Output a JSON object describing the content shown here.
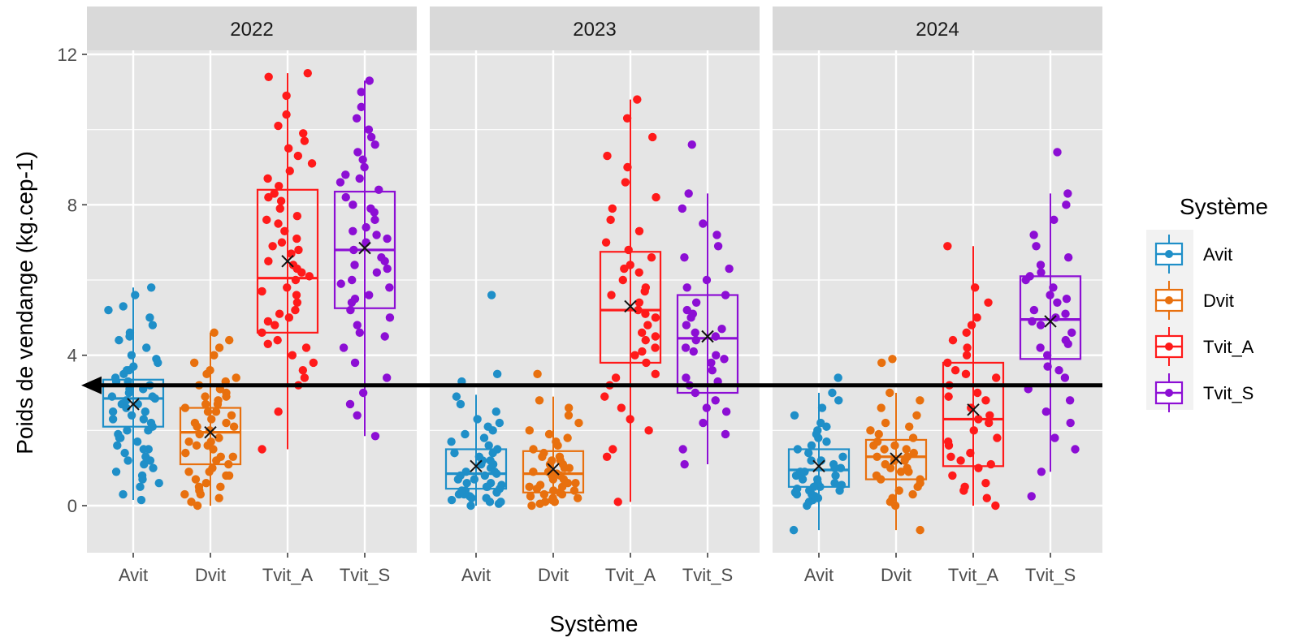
{
  "chart_data": {
    "type": "box",
    "ylabel": "Poids de vendange (kg.cep-1)",
    "xlabel": "Système",
    "ylim": [
      -1.25,
      12.5
    ],
    "yticks": [
      0,
      4,
      8,
      12
    ],
    "facets": [
      "2022",
      "2023",
      "2024"
    ],
    "categories": [
      "Avit",
      "Dvit",
      "Tvit_A",
      "Tvit_S"
    ],
    "legend": {
      "title": "Système",
      "position": "right",
      "entries": [
        "Avit",
        "Dvit",
        "Tvit_A",
        "Tvit_S"
      ]
    },
    "colors": {
      "Avit": "#1f8fc8",
      "Dvit": "#e8700e",
      "Tvit_A": "#ff1a1a",
      "Tvit_S": "#8c0ed4",
      "panel_bg": "#e5e5e5",
      "strip_bg": "#d9d9d9",
      "grid": "#ffffff"
    },
    "reference_arrow": {
      "y": 3.2,
      "direction": "left"
    },
    "boxes": {
      "2022": [
        {
          "category": "Avit",
          "q1": 2.1,
          "median": 2.85,
          "q3": 3.35,
          "wmin": 0.15,
          "wmax": 5.8,
          "mean": 2.7,
          "points": [
            0.15,
            0.3,
            0.5,
            0.6,
            0.7,
            0.8,
            0.9,
            1.0,
            1.1,
            1.2,
            1.3,
            1.4,
            1.5,
            1.6,
            1.7,
            1.8,
            1.9,
            2.0,
            2.1,
            2.2,
            2.3,
            2.4,
            2.5,
            2.6,
            2.7,
            2.8,
            2.85,
            2.9,
            3.0,
            3.1,
            3.2,
            3.3,
            3.4,
            3.5,
            3.6,
            3.7,
            3.8,
            4.0,
            4.2,
            4.4,
            4.6,
            4.8,
            5.0,
            5.3,
            5.6,
            5.8,
            2.3,
            2.5,
            2.7,
            2.9,
            3.1,
            1.2,
            1.5,
            1.8,
            2.0,
            3.3,
            3.6,
            3.9,
            4.5,
            5.2
          ]
        },
        {
          "category": "Dvit",
          "q1": 1.1,
          "median": 1.95,
          "q3": 2.6,
          "wmin": 0.0,
          "wmax": 4.6,
          "mean": 1.95,
          "points": [
            0.0,
            0.1,
            0.2,
            0.3,
            0.4,
            0.5,
            0.6,
            0.7,
            0.8,
            0.9,
            1.0,
            1.1,
            1.2,
            1.3,
            1.4,
            1.5,
            1.6,
            1.7,
            1.8,
            1.9,
            2.0,
            2.1,
            2.2,
            2.3,
            2.4,
            2.5,
            2.6,
            2.7,
            2.8,
            2.9,
            3.0,
            3.1,
            3.2,
            3.3,
            3.4,
            3.6,
            3.8,
            4.0,
            4.2,
            4.4,
            4.6,
            0.5,
            0.9,
            1.3,
            1.7,
            2.1,
            2.5,
            2.9,
            0.3,
            0.8,
            1.6,
            2.2,
            2.7,
            3.5
          ]
        },
        {
          "category": "Tvit_A",
          "q1": 4.6,
          "median": 6.05,
          "q3": 8.4,
          "wmin": 1.5,
          "wmax": 11.5,
          "mean": 6.5,
          "points": [
            1.5,
            2.5,
            3.2,
            3.4,
            3.6,
            3.8,
            4.0,
            4.2,
            4.4,
            4.6,
            4.8,
            5.0,
            5.2,
            5.4,
            5.6,
            5.8,
            6.0,
            6.1,
            6.3,
            6.5,
            6.7,
            6.9,
            7.1,
            7.3,
            7.5,
            7.7,
            7.9,
            8.1,
            8.3,
            8.5,
            8.7,
            8.9,
            9.1,
            9.3,
            9.5,
            9.7,
            9.9,
            10.1,
            10.4,
            10.9,
            11.4,
            11.5,
            5.1,
            5.7,
            6.4,
            7.0,
            7.6,
            8.2,
            4.3,
            4.9,
            6.2,
            6.8
          ]
        },
        {
          "category": "Tvit_S",
          "q1": 5.25,
          "median": 6.8,
          "q3": 8.35,
          "wmin": 1.85,
          "wmax": 11.3,
          "mean": 6.85,
          "points": [
            1.85,
            2.4,
            2.7,
            3.0,
            3.4,
            3.8,
            4.2,
            4.5,
            4.8,
            5.0,
            5.2,
            5.4,
            5.6,
            5.8,
            6.0,
            6.2,
            6.4,
            6.6,
            6.8,
            7.0,
            7.2,
            7.4,
            7.6,
            7.8,
            8.0,
            8.2,
            8.4,
            8.6,
            8.8,
            9.0,
            9.2,
            9.4,
            9.6,
            9.8,
            10.0,
            10.3,
            10.6,
            11.0,
            11.3,
            5.5,
            6.3,
            7.1,
            7.9,
            8.7,
            6.5,
            7.3,
            5.9,
            4.6
          ]
        }
      ],
      "2023": [
        {
          "category": "Avit",
          "q1": 0.45,
          "median": 0.85,
          "q3": 1.5,
          "wmin": 0.0,
          "wmax": 2.95,
          "mean": 1.05,
          "points": [
            0.0,
            0.05,
            0.1,
            0.15,
            0.2,
            0.25,
            0.3,
            0.35,
            0.4,
            0.45,
            0.5,
            0.55,
            0.6,
            0.7,
            0.8,
            0.85,
            0.9,
            1.0,
            1.1,
            1.2,
            1.3,
            1.4,
            1.5,
            1.6,
            1.7,
            1.8,
            1.9,
            2.0,
            2.1,
            2.2,
            2.3,
            2.5,
            2.7,
            2.9,
            3.3,
            3.5,
            5.6,
            0.3,
            0.6,
            0.9,
            1.2,
            0.2,
            0.5,
            0.8,
            1.1,
            1.4,
            0.1,
            0.4,
            0.7
          ]
        },
        {
          "category": "Dvit",
          "q1": 0.35,
          "median": 0.85,
          "q3": 1.45,
          "wmin": 0.0,
          "wmax": 2.9,
          "mean": 0.97,
          "points": [
            0.0,
            0.05,
            0.1,
            0.15,
            0.2,
            0.25,
            0.3,
            0.35,
            0.4,
            0.45,
            0.5,
            0.55,
            0.6,
            0.7,
            0.8,
            0.85,
            0.9,
            1.0,
            1.1,
            1.2,
            1.3,
            1.4,
            1.5,
            1.6,
            1.7,
            1.8,
            1.9,
            2.0,
            2.2,
            2.4,
            2.6,
            2.8,
            3.5,
            0.3,
            0.6,
            0.9,
            1.2,
            0.2,
            0.5,
            0.8,
            1.1,
            0.1,
            0.4,
            0.7,
            1.0,
            1.3
          ]
        },
        {
          "category": "Tvit_A",
          "q1": 3.8,
          "median": 5.2,
          "q3": 6.75,
          "wmin": 0.1,
          "wmax": 10.8,
          "mean": 5.3,
          "points": [
            0.1,
            1.3,
            1.5,
            2.0,
            2.3,
            2.6,
            2.9,
            3.2,
            3.5,
            3.8,
            4.0,
            4.2,
            4.4,
            4.6,
            4.8,
            5.0,
            5.2,
            5.4,
            5.6,
            5.8,
            6.0,
            6.2,
            6.4,
            6.6,
            6.8,
            7.0,
            7.3,
            7.6,
            7.9,
            8.2,
            8.6,
            9.0,
            9.3,
            9.8,
            10.3,
            10.8,
            4.5,
            5.1,
            5.7,
            6.3,
            3.4,
            4.1
          ]
        },
        {
          "category": "Tvit_S",
          "q1": 3.0,
          "median": 4.45,
          "q3": 5.6,
          "wmin": 1.1,
          "wmax": 8.3,
          "mean": 4.5,
          "points": [
            1.1,
            1.5,
            1.9,
            2.2,
            2.5,
            2.8,
            3.0,
            3.2,
            3.4,
            3.6,
            3.8,
            4.0,
            4.2,
            4.4,
            4.6,
            4.8,
            5.0,
            5.2,
            5.4,
            5.6,
            5.8,
            6.0,
            6.3,
            6.6,
            6.9,
            7.2,
            7.5,
            7.9,
            8.3,
            9.6,
            3.3,
            3.9,
            4.5,
            5.1,
            2.6,
            4.1,
            4.7
          ]
        }
      ],
      "2024": [
        {
          "category": "Avit",
          "q1": 0.5,
          "median": 0.95,
          "q3": 1.5,
          "wmin": -0.65,
          "wmax": 3.0,
          "mean": 1.05,
          "points": [
            -0.65,
            0.0,
            0.1,
            0.15,
            0.2,
            0.25,
            0.3,
            0.35,
            0.4,
            0.45,
            0.5,
            0.55,
            0.6,
            0.7,
            0.8,
            0.9,
            1.0,
            1.1,
            1.2,
            1.3,
            1.4,
            1.5,
            1.6,
            1.7,
            1.8,
            1.9,
            2.0,
            2.1,
            2.2,
            2.4,
            2.6,
            2.8,
            3.0,
            3.4,
            0.3,
            0.6,
            0.9,
            1.2,
            0.4,
            0.7,
            1.0,
            0.2,
            0.5,
            0.8
          ]
        },
        {
          "category": "Dvit",
          "q1": 0.7,
          "median": 1.3,
          "q3": 1.75,
          "wmin": -0.65,
          "wmax": 3.0,
          "mean": 1.25,
          "points": [
            -0.65,
            0.0,
            0.1,
            0.2,
            0.3,
            0.4,
            0.5,
            0.6,
            0.7,
            0.8,
            0.9,
            1.0,
            1.1,
            1.2,
            1.3,
            1.4,
            1.5,
            1.6,
            1.7,
            1.8,
            1.9,
            2.0,
            2.1,
            2.2,
            2.4,
            2.6,
            2.8,
            3.0,
            3.8,
            3.9,
            0.7,
            1.0,
            1.3,
            1.6,
            0.9,
            1.2,
            1.5
          ]
        },
        {
          "category": "Tvit_A",
          "q1": 1.05,
          "median": 2.3,
          "q3": 3.8,
          "wmin": 0.0,
          "wmax": 6.9,
          "mean": 2.55,
          "points": [
            0.0,
            0.2,
            0.4,
            0.6,
            0.8,
            1.0,
            1.2,
            1.4,
            1.6,
            1.8,
            2.0,
            2.2,
            2.4,
            2.6,
            2.8,
            3.0,
            3.2,
            3.4,
            3.6,
            3.8,
            4.0,
            4.2,
            4.4,
            4.6,
            4.8,
            5.0,
            5.4,
            5.8,
            6.9,
            1.1,
            1.7,
            2.3,
            2.9,
            3.5,
            0.5,
            1.3
          ]
        },
        {
          "category": "Tvit_S",
          "q1": 3.9,
          "median": 4.95,
          "q3": 6.1,
          "wmin": 0.9,
          "wmax": 8.3,
          "mean": 4.9,
          "points": [
            0.25,
            0.9,
            1.5,
            1.8,
            2.2,
            2.5,
            2.8,
            3.1,
            3.4,
            3.7,
            4.0,
            4.2,
            4.4,
            4.6,
            4.8,
            5.0,
            5.2,
            5.4,
            5.6,
            5.8,
            6.0,
            6.2,
            6.4,
            6.6,
            6.9,
            7.2,
            7.6,
            8.0,
            8.3,
            9.4,
            4.3,
            4.9,
            5.5,
            6.1,
            3.6,
            5.1
          ]
        }
      ]
    }
  }
}
